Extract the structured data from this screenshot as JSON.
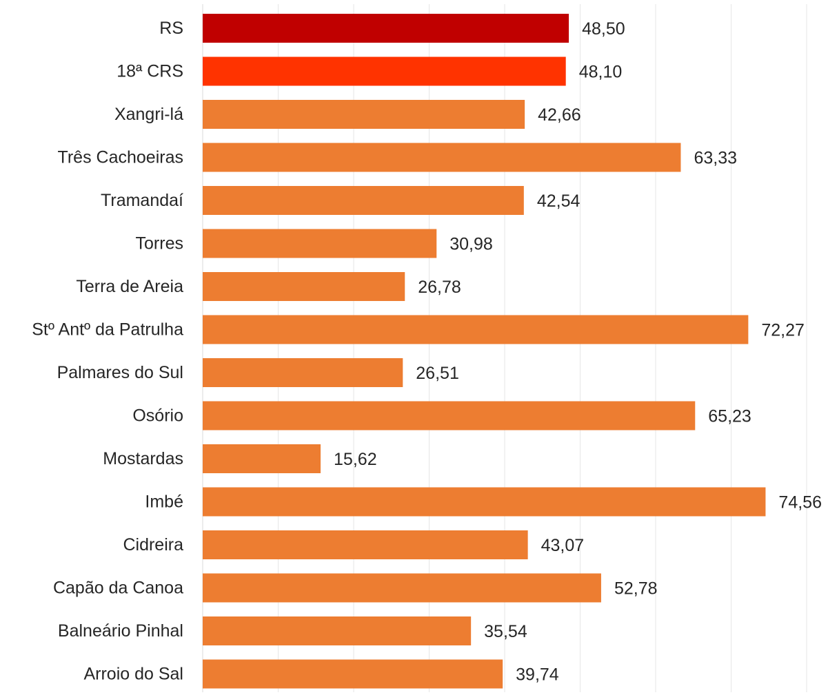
{
  "chart_data": {
    "type": "bar",
    "orientation": "horizontal",
    "categories": [
      "RS",
      "18ª CRS",
      "Xangri-lá",
      "Três Cachoeiras",
      "Tramandaí",
      "Torres",
      "Terra de Areia",
      "Stº Antº da Patrulha",
      "Palmares do Sul",
      "Osório",
      "Mostardas",
      "Imbé",
      "Cidreira",
      "Capão da Canoa",
      "Balneário Pinhal",
      "Arroio do Sal"
    ],
    "values": [
      48.5,
      48.1,
      42.66,
      63.33,
      42.54,
      30.98,
      26.78,
      72.27,
      26.51,
      65.23,
      15.62,
      74.56,
      43.07,
      52.78,
      35.54,
      39.74
    ],
    "value_labels": [
      "48,50",
      "48,10",
      "42,66",
      "63,33",
      "42,54",
      "30,98",
      "26,78",
      "72,27",
      "26,51",
      "65,23",
      "15,62",
      "74,56",
      "43,07",
      "52,78",
      "35,54",
      "39,74"
    ],
    "bar_colors": [
      "#c00000",
      "#ff3300",
      "#ed7d31",
      "#ed7d31",
      "#ed7d31",
      "#ed7d31",
      "#ed7d31",
      "#ed7d31",
      "#ed7d31",
      "#ed7d31",
      "#ed7d31",
      "#ed7d31",
      "#ed7d31",
      "#ed7d31",
      "#ed7d31",
      "#ed7d31"
    ],
    "xlim": [
      0,
      80
    ],
    "grid": true,
    "legend": "none",
    "title": "",
    "xlabel": "",
    "ylabel": ""
  }
}
